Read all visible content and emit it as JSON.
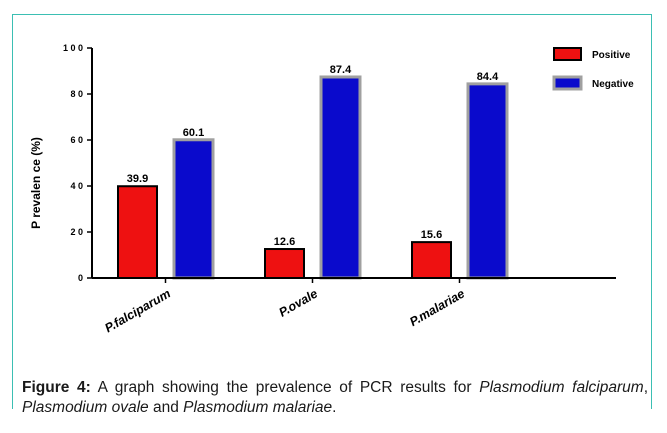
{
  "chart_data": {
    "type": "bar",
    "categories": [
      "P.falciparum",
      "P.ovale",
      "P.malariae"
    ],
    "series": [
      {
        "name": "Positive",
        "values": [
          39.9,
          12.6,
          15.6
        ],
        "color": "#ee1111"
      },
      {
        "name": "Negative",
        "values": [
          60.1,
          87.4,
          84.4
        ],
        "color": "#0a0acc"
      }
    ],
    "ylabel": "P revalen ce (%)",
    "ylim": [
      0,
      100
    ],
    "yticks": [
      "0",
      "2 0",
      "4 0",
      "6 0",
      "8 0",
      "1 0 0"
    ],
    "legend": "top-right",
    "grid": false
  },
  "caption": {
    "label": "Figure 4:",
    "text_1": " A graph showing the prevalence of PCR results for ",
    "species_1": "Plasmodium falciparum",
    "sep_1": ", ",
    "species_2": "Plasmodium ovale",
    "sep_2": " and ",
    "species_3": "Plasmodium malariae",
    "end": "."
  }
}
